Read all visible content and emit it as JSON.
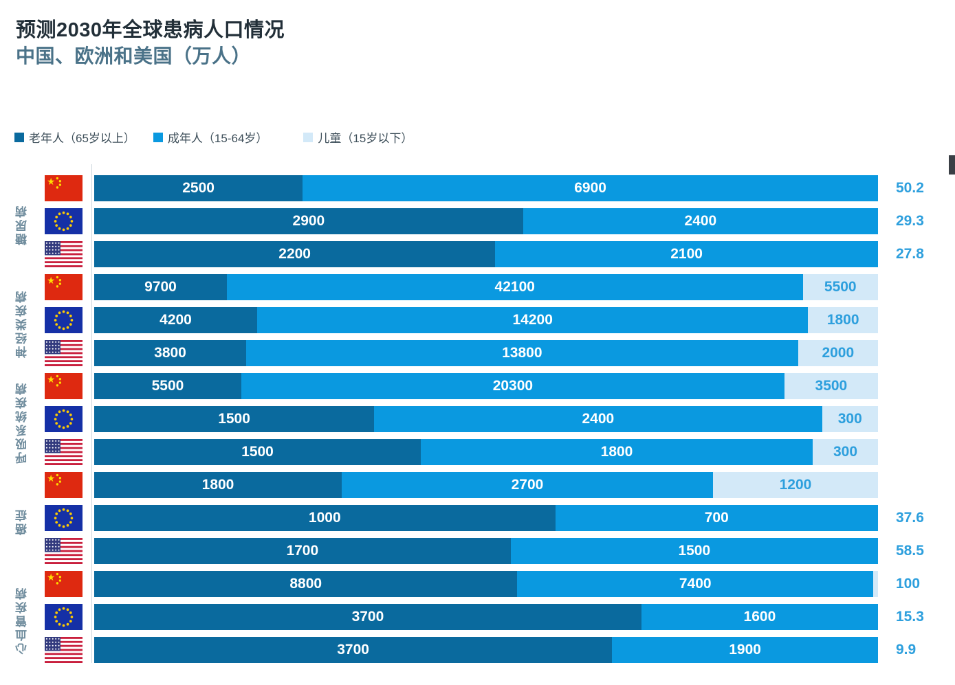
{
  "title": "预测2030年全球患病人口情况",
  "subtitle": "中国、欧洲和美国（万人）",
  "legend": [
    {
      "label": "老年人（65岁以上）",
      "color": "#0a6a9e"
    },
    {
      "label": "成年人（15-64岁）",
      "color": "#0a99e0"
    },
    {
      "label": "儿童（15岁以下）",
      "color": "#d3e9f8"
    }
  ],
  "colors": {
    "elderly": "#0a6a9e",
    "adult": "#0a99e0",
    "children": "#d3e9f8",
    "children_text": "#2d9fdd",
    "axis_line": "#ccd6dc",
    "china_flag_red": "#de2910",
    "eu_flag_blue": "#1530a6",
    "usa_stripe_red": "#c9203e",
    "usa_canton_blue": "#323a7e",
    "star_yellow": "#ffde00",
    "eu_star_yellow": "#ffcc00"
  },
  "icons": {
    "china": "china-flag-icon",
    "eu": "eu-flag-icon",
    "usa": "usa-flag-icon"
  },
  "chart_data": {
    "type": "bar",
    "orientation": "horizontal-stacked-100",
    "unit": "万人",
    "title": "预测2030年全球患病人口情况",
    "subtitle": "中国、欧洲和美国（万人）",
    "legend_position": "top-left",
    "grid": false,
    "series_names": [
      "老年人（65岁以上）",
      "成年人（15-64岁）",
      "儿童（15岁以下）"
    ],
    "groups": [
      {
        "disease": "糖尿病",
        "rows": [
          {
            "country": "china",
            "elderly": 2500,
            "adult": 6900,
            "children": 50.2,
            "children_label_position": "outside",
            "show_children_segment": false
          },
          {
            "country": "eu",
            "elderly": 2900,
            "adult": 2400,
            "children": 29.3,
            "children_label_position": "outside",
            "show_children_segment": false
          },
          {
            "country": "usa",
            "elderly": 2200,
            "adult": 2100,
            "children": 27.8,
            "children_label_position": "outside",
            "show_children_segment": false
          }
        ]
      },
      {
        "disease": "神经类疾病",
        "rows": [
          {
            "country": "china",
            "elderly": 9700,
            "adult": 42100,
            "children": 5500,
            "children_label_position": "inside",
            "show_children_segment": true
          },
          {
            "country": "eu",
            "elderly": 4200,
            "adult": 14200,
            "children": 1800,
            "children_label_position": "inside",
            "show_children_segment": true
          },
          {
            "country": "usa",
            "elderly": 3800,
            "adult": 13800,
            "children": 2000,
            "children_label_position": "inside",
            "show_children_segment": true
          }
        ]
      },
      {
        "disease": "呼吸系统疾病",
        "rows": [
          {
            "country": "china",
            "elderly": 5500,
            "adult": 20300,
            "children": 3500,
            "children_label_position": "inside",
            "show_children_segment": true
          },
          {
            "country": "eu",
            "elderly": 1500,
            "adult": 2400,
            "children": 300,
            "children_label_position": "inside",
            "show_children_segment": true
          },
          {
            "country": "usa",
            "elderly": 1500,
            "adult": 1800,
            "children": 300,
            "children_label_position": "inside",
            "show_children_segment": true
          }
        ]
      },
      {
        "disease": "癌症",
        "rows": [
          {
            "country": "china",
            "elderly": 1800,
            "adult": 2700,
            "children": 1200,
            "children_label_position": "inside",
            "show_children_segment": true
          },
          {
            "country": "eu",
            "elderly": 1000,
            "adult": 700,
            "children": 37.6,
            "children_label_position": "outside",
            "show_children_segment": false
          },
          {
            "country": "usa",
            "elderly": 1700,
            "adult": 1500,
            "children": 58.5,
            "children_label_position": "outside",
            "show_children_segment": false
          }
        ]
      },
      {
        "disease": "心血管疾病",
        "rows": [
          {
            "country": "china",
            "elderly": 8800,
            "adult": 7400,
            "children": 100,
            "children_label_position": "outside",
            "show_children_segment": true
          },
          {
            "country": "eu",
            "elderly": 3700,
            "adult": 1600,
            "children": 15.3,
            "children_label_position": "outside",
            "show_children_segment": false
          },
          {
            "country": "usa",
            "elderly": 3700,
            "adult": 1900,
            "children": 9.9,
            "children_label_position": "outside",
            "show_children_segment": false
          }
        ]
      }
    ]
  }
}
